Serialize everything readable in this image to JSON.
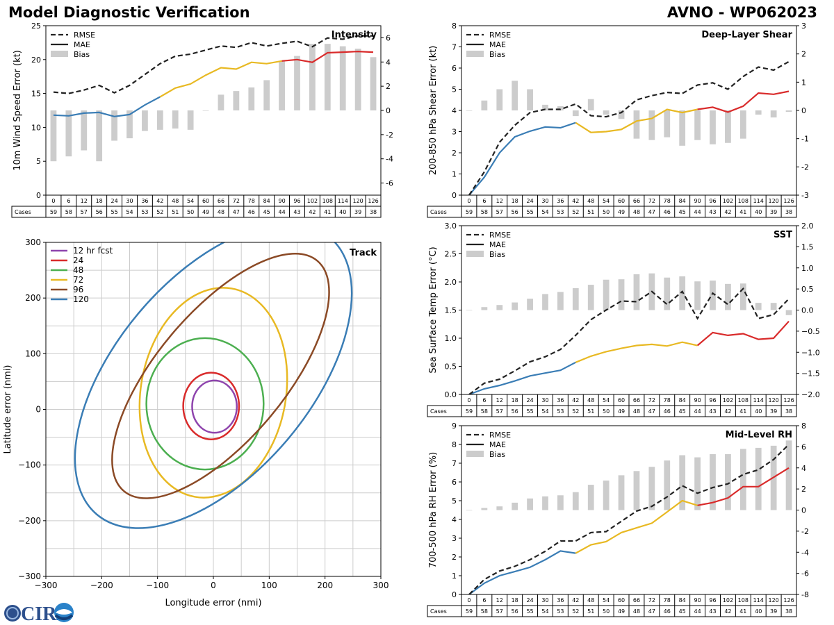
{
  "header": {
    "title": "Model Diagnostic Verification",
    "subtitle": "AVNO - WP062023"
  },
  "logo": {
    "text": "CIRA",
    "name": "cira-logo"
  },
  "colors": {
    "rmse": "#222222",
    "mae_early": "#3a7db5",
    "mae_mid": "#e8b923",
    "mae_late": "#d92b2b",
    "bias": "#cccccc",
    "grid": "#cccccc"
  },
  "lead_times": [
    "0",
    "6",
    "12",
    "18",
    "24",
    "30",
    "36",
    "42",
    "48",
    "54",
    "60",
    "66",
    "72",
    "78",
    "84",
    "90",
    "96",
    "102",
    "108",
    "114",
    "120",
    "126"
  ],
  "chart_data": [
    {
      "id": "intensity",
      "type": "line",
      "title": "Intensity",
      "ylabel": "10m Wind Speed Error (kt)",
      "ylim": [
        0,
        25
      ],
      "yticks": [
        0,
        5,
        10,
        15,
        20,
        25
      ],
      "y2lim": [
        -7,
        7
      ],
      "y2ticks": [
        -6,
        -4,
        -2,
        0,
        2,
        4,
        6
      ],
      "legend": [
        "RMSE",
        "MAE",
        "Bias"
      ],
      "cases_label": "Cases",
      "cases": [
        "59",
        "58",
        "57",
        "56",
        "55",
        "54",
        "53",
        "52",
        "51",
        "50",
        "49",
        "48",
        "47",
        "46",
        "45",
        "44",
        "43",
        "42",
        "41",
        "40",
        "39",
        "38"
      ],
      "rmse": [
        15.2,
        15.0,
        15.5,
        16.2,
        15.1,
        16.2,
        17.8,
        19.4,
        20.5,
        20.8,
        21.4,
        22.0,
        21.8,
        22.5,
        22.0,
        22.4,
        22.7,
        21.9,
        23.2,
        23.0,
        23.5,
        23.5
      ],
      "mae": [
        11.8,
        11.7,
        12.1,
        12.2,
        11.6,
        11.9,
        13.3,
        14.5,
        15.8,
        16.4,
        17.7,
        18.8,
        18.6,
        19.6,
        19.4,
        19.8,
        20.0,
        19.6,
        21.0,
        21.1,
        21.2,
        21.1
      ],
      "bias": [
        -4.2,
        -3.8,
        -3.3,
        -4.2,
        -2.5,
        -2.3,
        -1.7,
        -1.6,
        -1.5,
        -1.6,
        0,
        1.3,
        1.6,
        1.9,
        2.5,
        4.1,
        4.5,
        5.5,
        5.5,
        5.3,
        5.1,
        4.4
      ]
    },
    {
      "id": "shear",
      "type": "line",
      "title": "Deep-Layer Shear",
      "ylabel": "200-850 hPa Shear Error (kt)",
      "ylim": [
        0,
        8
      ],
      "yticks": [
        0,
        1,
        2,
        3,
        4,
        5,
        6,
        7,
        8
      ],
      "y2lim": [
        -3,
        3
      ],
      "y2ticks": [
        -3,
        -2,
        -1,
        0,
        1,
        2,
        3
      ],
      "legend": [
        "RMSE",
        "MAE",
        "Bias"
      ],
      "cases_label": "Cases",
      "cases": [
        "59",
        "58",
        "57",
        "56",
        "55",
        "54",
        "53",
        "52",
        "51",
        "50",
        "49",
        "48",
        "47",
        "46",
        "45",
        "44",
        "43",
        "42",
        "41",
        "40",
        "39",
        "38"
      ],
      "rmse": [
        0.0,
        1.1,
        2.5,
        3.3,
        3.9,
        4.05,
        4.05,
        4.3,
        3.75,
        3.7,
        3.9,
        4.5,
        4.7,
        4.85,
        4.8,
        5.2,
        5.3,
        5.0,
        5.6,
        6.05,
        5.9,
        6.3
      ],
      "mae": [
        0.0,
        0.85,
        2.0,
        2.75,
        3.02,
        3.22,
        3.18,
        3.42,
        2.96,
        3.0,
        3.1,
        3.5,
        3.62,
        4.05,
        3.9,
        4.05,
        4.15,
        3.92,
        4.2,
        4.82,
        4.76,
        4.9
      ],
      "bias": [
        0,
        0.35,
        0.75,
        1.05,
        0.75,
        0.2,
        0.15,
        -0.2,
        0.4,
        -0.15,
        -0.3,
        -1.0,
        -1.05,
        -0.95,
        -1.25,
        -1.05,
        -1.2,
        -1.15,
        -1.0,
        -0.15,
        -0.25,
        -0.05
      ]
    },
    {
      "id": "sst",
      "type": "line",
      "title": "SST",
      "ylabel": "Sea Surface Temp Error (°C)",
      "ylim": [
        0,
        3.0
      ],
      "yticks": [
        "0.0",
        "0.5",
        "1.0",
        "1.5",
        "2.0",
        "2.5",
        "3.0"
      ],
      "y2lim": [
        -2,
        2
      ],
      "y2ticks": [
        "−2.0",
        "−1.5",
        "−1.0",
        "−0.5",
        "0.0",
        "0.5",
        "1.0",
        "1.5",
        "2.0"
      ],
      "legend": [
        "RMSE",
        "MAE",
        "Bias"
      ],
      "cases_label": "Cases",
      "cases": [
        "59",
        "58",
        "57",
        "56",
        "55",
        "54",
        "53",
        "52",
        "51",
        "50",
        "49",
        "48",
        "47",
        "46",
        "45",
        "44",
        "43",
        "42",
        "41",
        "40",
        "39",
        "38"
      ],
      "rmse": [
        0.0,
        0.2,
        0.27,
        0.42,
        0.58,
        0.67,
        0.8,
        1.05,
        1.33,
        1.5,
        1.66,
        1.65,
        1.83,
        1.6,
        1.83,
        1.35,
        1.8,
        1.6,
        1.88,
        1.35,
        1.42,
        1.7
      ],
      "mae": [
        0.0,
        0.1,
        0.16,
        0.24,
        0.33,
        0.38,
        0.43,
        0.57,
        0.68,
        0.76,
        0.82,
        0.87,
        0.89,
        0.86,
        0.93,
        0.87,
        1.1,
        1.05,
        1.08,
        0.98,
        1.0,
        1.3
      ],
      "bias": [
        0,
        0.07,
        0.12,
        0.18,
        0.27,
        0.38,
        0.43,
        0.52,
        0.6,
        0.72,
        0.73,
        0.85,
        0.87,
        0.77,
        0.8,
        0.68,
        0.7,
        0.62,
        0.63,
        0.17,
        0.17,
        -0.12
      ]
    },
    {
      "id": "rh",
      "type": "line",
      "title": "Mid-Level RH",
      "ylabel": "700-500 hPa RH Error (%)",
      "ylim": [
        0,
        9
      ],
      "yticks": [
        0,
        1,
        2,
        3,
        4,
        5,
        6,
        7,
        8,
        9
      ],
      "y2lim": [
        -8,
        8
      ],
      "y2ticks": [
        -8,
        -6,
        -4,
        -2,
        0,
        2,
        4,
        6,
        8
      ],
      "legend": [
        "RMSE",
        "MAE",
        "Bias"
      ],
      "cases_label": "Cases",
      "cases": [
        "59",
        "58",
        "57",
        "56",
        "55",
        "54",
        "53",
        "52",
        "51",
        "50",
        "49",
        "48",
        "47",
        "46",
        "45",
        "44",
        "43",
        "42",
        "41",
        "40",
        "39",
        "38"
      ],
      "rmse": [
        0.0,
        0.8,
        1.25,
        1.5,
        1.85,
        2.3,
        2.85,
        2.85,
        3.3,
        3.35,
        3.9,
        4.45,
        4.7,
        5.2,
        5.8,
        5.4,
        5.7,
        5.9,
        6.4,
        6.65,
        7.2,
        8.0
      ],
      "mae": [
        0.0,
        0.6,
        1.0,
        1.22,
        1.45,
        1.85,
        2.32,
        2.2,
        2.65,
        2.82,
        3.3,
        3.55,
        3.8,
        4.4,
        5.0,
        4.75,
        4.9,
        5.15,
        5.75,
        5.75,
        6.25,
        6.75
      ],
      "bias": [
        0,
        0.2,
        0.35,
        0.7,
        1.1,
        1.3,
        1.4,
        1.7,
        2.4,
        2.8,
        3.3,
        3.7,
        4.1,
        4.7,
        5.2,
        5.0,
        5.3,
        5.3,
        5.8,
        5.9,
        6.1,
        6.6
      ]
    },
    {
      "id": "track",
      "type": "scatter",
      "title": "Track",
      "xlabel": "Longitude error (nmi)",
      "ylabel": "Latitude error (nmi)",
      "xlim": [
        -300,
        300
      ],
      "ylim": [
        -300,
        300
      ],
      "xticks": [
        "−300",
        "−200",
        "−100",
        "0",
        "100",
        "200",
        "300"
      ],
      "yticks": [
        "−300",
        "−200",
        "−100",
        "0",
        "100",
        "200",
        "300"
      ],
      "ellipses": [
        {
          "label": "12 hr fcst",
          "color": "#8e44ad",
          "cx": 2,
          "cy": 5,
          "rx": 40,
          "ry": 47,
          "rot": 0
        },
        {
          "label": "24",
          "color": "#d92b2b",
          "cx": -4,
          "cy": 6,
          "rx": 50,
          "ry": 60,
          "rot": 0
        },
        {
          "label": "48",
          "color": "#4caf50",
          "cx": -15,
          "cy": 10,
          "rx": 105,
          "ry": 118,
          "rot": 0
        },
        {
          "label": "72",
          "color": "#e8b923",
          "cx": 0,
          "cy": 30,
          "rx": 130,
          "ry": 190,
          "rot": 10
        },
        {
          "label": "96",
          "color": "#8b4a26",
          "cx": 13,
          "cy": 60,
          "rx": 115,
          "ry": 270,
          "rot": 40
        },
        {
          "label": "120",
          "color": "#3a7db5",
          "cx": 0,
          "cy": 60,
          "rx": 175,
          "ry": 325,
          "rot": 40
        }
      ]
    }
  ]
}
